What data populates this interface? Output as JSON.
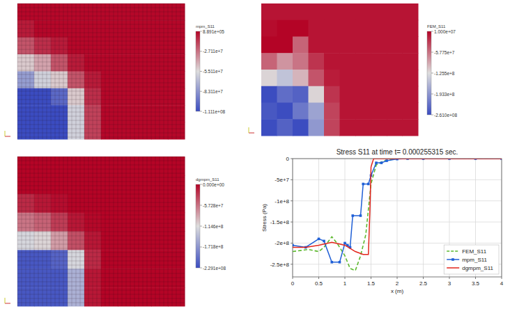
{
  "chart_data": [
    {
      "type": "heatmap",
      "colorbar_title": "mpm_S11",
      "tick_labels": false,
      "grid": true,
      "color_range": [
        -111100000,
        889100
      ],
      "colorbar_ticks": [
        {
          "value": 889100,
          "label": "8.891e+05"
        },
        {
          "value": -27110000,
          "label": "-2.711e+7"
        },
        {
          "value": -55110000,
          "label": "-5.511e+7"
        },
        {
          "value": -83110000,
          "label": "-8.311e+7"
        },
        {
          "value": -111100000,
          "label": "-1.111e+08"
        }
      ],
      "cells": [
        [
          0,
          0,
          0,
          0,
          0,
          0,
          0,
          0,
          0,
          0
        ],
        [
          -5000000,
          0,
          0,
          0,
          0,
          0,
          0,
          0,
          0,
          0
        ],
        [
          -20000000,
          -10000000,
          -5000000,
          0,
          0,
          0,
          0,
          0,
          0,
          0
        ],
        [
          -50000000,
          -40000000,
          -20000000,
          -5000000,
          0,
          0,
          0,
          0,
          0,
          0
        ],
        [
          -80000000,
          -60000000,
          -50000000,
          -20000000,
          -5000000,
          0,
          0,
          0,
          0,
          0
        ],
        [
          -111000000,
          -111000000,
          -100000000,
          -50000000,
          -10000000,
          0,
          0,
          0,
          0,
          0
        ],
        [
          -111000000,
          -111000000,
          -111000000,
          -60000000,
          -15000000,
          0,
          0,
          0,
          0,
          0
        ],
        [
          -111000000,
          -111000000,
          -111000000,
          -60000000,
          -15000000,
          0,
          0,
          0,
          0,
          0
        ]
      ]
    },
    {
      "type": "heatmap",
      "colorbar_title": "FEM_S11",
      "tick_labels": false,
      "grid": false,
      "color_range": [
        -261000000,
        10000000
      ],
      "colorbar_ticks": [
        {
          "value": 10000000,
          "label": "1.000e+07"
        },
        {
          "value": -57750000,
          "label": "-5.775e+7"
        },
        {
          "value": -125500000,
          "label": "-1.255e+8"
        },
        {
          "value": -193300000,
          "label": "-1.933e+8"
        },
        {
          "value": -261000000,
          "label": "-2.610e+08"
        }
      ],
      "cells": [
        [
          0,
          0,
          0,
          0,
          0,
          0,
          0,
          0,
          0,
          0
        ],
        [
          5000000,
          10000000,
          10000000,
          0,
          0,
          0,
          0,
          0,
          0,
          0
        ],
        [
          10000000,
          10000000,
          -50000000,
          0,
          0,
          0,
          0,
          0,
          0,
          0
        ],
        [
          -50000000,
          -80000000,
          -60000000,
          -20000000,
          0,
          0,
          0,
          0,
          0,
          0
        ],
        [
          -120000000,
          -150000000,
          -100000000,
          -40000000,
          -5000000,
          0,
          0,
          0,
          0,
          0
        ],
        [
          -260000000,
          -230000000,
          -240000000,
          -120000000,
          -20000000,
          0,
          0,
          0,
          0,
          0
        ],
        [
          -250000000,
          -260000000,
          -220000000,
          -180000000,
          -30000000,
          0,
          0,
          0,
          0,
          0
        ],
        [
          -260000000,
          -240000000,
          -260000000,
          -190000000,
          -30000000,
          0,
          0,
          0,
          0,
          0
        ]
      ]
    },
    {
      "type": "heatmap",
      "colorbar_title": "dgmpm_S11",
      "tick_labels": false,
      "grid": true,
      "color_range": [
        -229100000,
        0
      ],
      "colorbar_ticks": [
        {
          "value": 0,
          "label": "0.000e+00"
        },
        {
          "value": -57280000,
          "label": "-5.728e+7"
        },
        {
          "value": -114600000,
          "label": "-1.146e+8"
        },
        {
          "value": -171800000,
          "label": "-1.718e+8"
        },
        {
          "value": -229100000,
          "label": "-2.291e+08"
        }
      ],
      "cells": [
        [
          0,
          0,
          0,
          0,
          0,
          0,
          0,
          0,
          0,
          0
        ],
        [
          0,
          0,
          0,
          0,
          0,
          0,
          0,
          0,
          0,
          0
        ],
        [
          -20000000,
          -10000000,
          -5000000,
          0,
          0,
          0,
          0,
          0,
          0,
          0
        ],
        [
          -60000000,
          -50000000,
          -30000000,
          -10000000,
          -2000000,
          0,
          0,
          0,
          0,
          0
        ],
        [
          -120000000,
          -110000000,
          -80000000,
          -40000000,
          -10000000,
          0,
          0,
          0,
          0,
          0
        ],
        [
          -220000000,
          -220000000,
          -210000000,
          -120000000,
          -20000000,
          0,
          0,
          0,
          0,
          0
        ],
        [
          -220000000,
          -220000000,
          -220000000,
          -150000000,
          -10000000,
          0,
          0,
          0,
          0,
          0
        ],
        [
          -220000000,
          -220000000,
          -220000000,
          -150000000,
          -10000000,
          0,
          0,
          0,
          0,
          0
        ]
      ]
    },
    {
      "type": "line",
      "title": "Stress S11 at time t= 0.000255315 sec.",
      "x_label": "x (m)",
      "y_label": "Stress (Pa)",
      "xlim": [
        0,
        4
      ],
      "ylim": [
        -280000000,
        0
      ],
      "xticks": [
        0,
        0.5,
        1,
        1.5,
        2,
        2.5,
        3,
        3.5,
        4
      ],
      "yticks": [
        {
          "value": 0,
          "label": "0"
        },
        {
          "value": -50000000,
          "label": "-5e+7"
        },
        {
          "value": -100000000,
          "label": "-1e+8"
        },
        {
          "value": -150000000,
          "label": "-1.5e+8"
        },
        {
          "value": -200000000,
          "label": "-2e+8"
        },
        {
          "value": -250000000,
          "label": "-2.5e+8"
        }
      ],
      "grid": true,
      "legend": "lower right",
      "series": [
        {
          "name": "FEM_S11",
          "color": "#5cb82e",
          "line_style": "dashed",
          "marker": "none",
          "x": [
            0,
            0.3,
            0.5,
            0.6,
            0.75,
            0.85,
            1.0,
            1.1,
            1.2,
            1.3,
            1.4,
            1.5,
            1.6,
            1.75,
            2.0,
            4.0
          ],
          "values": [
            -220000000,
            -215000000,
            -220000000,
            -210000000,
            -185000000,
            -200000000,
            -230000000,
            -260000000,
            -265000000,
            -230000000,
            -180000000,
            -60000000,
            -15000000,
            -5000000,
            0,
            0
          ]
        },
        {
          "name": "mpm_S11",
          "color": "#1f5fd6",
          "line_style": "solid",
          "marker": "square",
          "x": [
            0,
            0.25,
            0.5,
            0.6,
            0.75,
            0.9,
            1.0,
            1.05,
            1.1,
            1.15,
            1.3,
            1.35,
            1.45,
            1.5,
            1.6,
            1.7,
            1.8,
            2.0,
            2.2,
            2.5,
            3.0,
            3.5,
            4.0
          ],
          "values": [
            -205000000,
            -210000000,
            -190000000,
            -195000000,
            -245000000,
            -245000000,
            -200000000,
            -205000000,
            -210000000,
            -135000000,
            -135000000,
            -60000000,
            -60000000,
            -40000000,
            -10000000,
            -10000000,
            -5000000,
            -1000000,
            0,
            0,
            0,
            0,
            0
          ]
        },
        {
          "name": "dgmpm_S11",
          "color": "#e3241b",
          "line_style": "solid",
          "marker": "none",
          "x": [
            0,
            0.25,
            0.5,
            0.75,
            1.0,
            1.2,
            1.35,
            1.45,
            1.48,
            1.5,
            1.55,
            4.0
          ],
          "values": [
            -210000000,
            -210000000,
            -205000000,
            -198000000,
            -205000000,
            -220000000,
            -227000000,
            -227000000,
            -120000000,
            -20000000,
            0,
            0
          ]
        }
      ]
    }
  ]
}
